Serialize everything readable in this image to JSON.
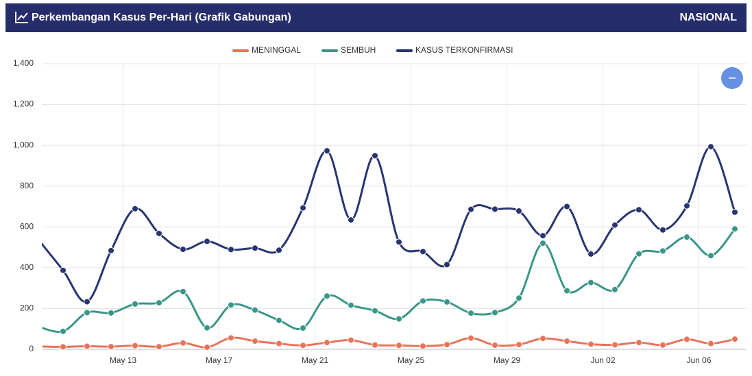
{
  "header": {
    "title": "Perkembangan Kasus Per-Hari (Grafik Gabungan)",
    "region": "NASIONAL"
  },
  "chart_data": {
    "type": "line",
    "categories": [
      null,
      null,
      null,
      null,
      "May 13",
      null,
      null,
      null,
      "May 17",
      null,
      null,
      null,
      "May 21",
      null,
      null,
      null,
      "May 25",
      null,
      null,
      null,
      "May 29",
      null,
      null,
      null,
      "Jun 02",
      null,
      null,
      null,
      "Jun 06",
      null
    ],
    "series": [
      {
        "name": "MENINGGAL",
        "color": "#e8735a",
        "values": [
          14,
          12,
          15,
          13,
          18,
          13,
          31,
          10,
          56,
          40,
          28,
          19,
          33,
          45,
          21,
          19,
          16,
          23,
          55,
          20,
          23,
          53,
          40,
          25,
          22,
          33,
          21,
          49,
          28,
          50
        ]
      },
      {
        "name": "SEMBUH",
        "color": "#3a9688",
        "values": [
          110,
          88,
          180,
          178,
          222,
          228,
          283,
          105,
          217,
          192,
          142,
          104,
          261,
          216,
          189,
          149,
          237,
          232,
          177,
          180,
          251,
          520,
          287,
          327,
          293,
          468,
          482,
          550,
          459,
          590
        ]
      },
      {
        "name": "KASUS TERKONFIRMASI",
        "color": "#283570",
        "values": [
          533,
          387,
          233,
          484,
          689,
          568,
          490,
          529,
          489,
          496,
          486,
          693,
          973,
          634,
          949,
          526,
          479,
          415,
          686,
          687,
          678,
          557,
          700,
          467,
          609,
          684,
          585,
          703,
          993,
          672
        ]
      }
    ],
    "ylim": [
      0,
      1400
    ],
    "yticks": [
      0,
      200,
      400,
      600,
      800,
      {
        "value": 1000,
        "label": "1,000"
      },
      {
        "value": 1200,
        "label": "1,200"
      },
      {
        "value": 1400,
        "label": "1,400"
      }
    ],
    "grid": true
  }
}
